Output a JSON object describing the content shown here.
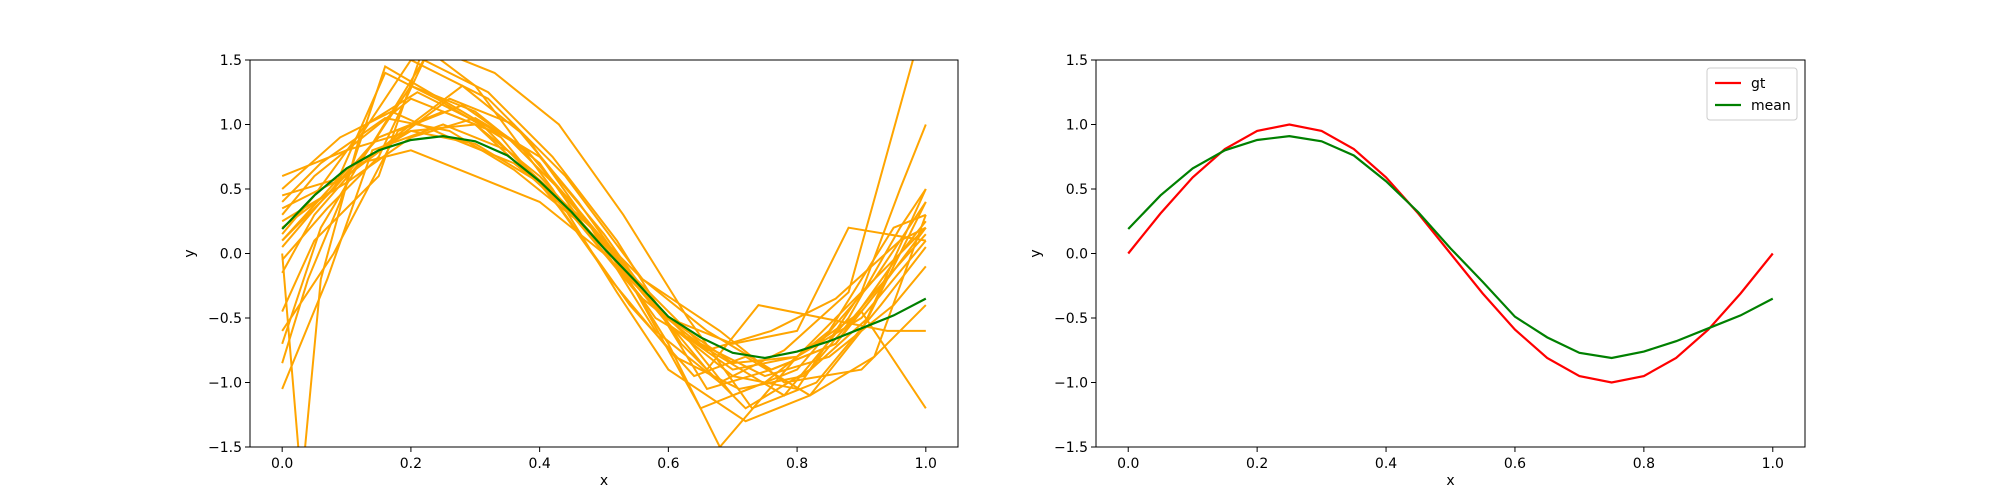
{
  "chart_data": [
    {
      "type": "line",
      "title": "",
      "xlabel": "x",
      "ylabel": "y",
      "xlim": [
        -0.05,
        1.05
      ],
      "ylim": [
        -1.5,
        1.5
      ],
      "xticks": [
        0.0,
        0.2,
        0.4,
        0.6,
        0.8,
        1.0
      ],
      "xtick_labels": [
        "0.0",
        "0.2",
        "0.4",
        "0.6",
        "0.8",
        "1.0"
      ],
      "yticks": [
        -1.5,
        -1.0,
        -0.5,
        0.0,
        0.5,
        1.0,
        1.5
      ],
      "ytick_labels": [
        "−1.5",
        "−1.0",
        "−0.5",
        "0.0",
        "0.5",
        "1.0",
        "1.5"
      ],
      "grid": false,
      "legend": null,
      "sample_color": "#ffa500",
      "mean_color": "#008000",
      "samples": [
        {
          "x": [
            0,
            0.05,
            0.1,
            0.2,
            0.3,
            0.4,
            0.5,
            0.6,
            0.7,
            0.8,
            0.9,
            1.0
          ],
          "y": [
            0.3,
            0.6,
            0.8,
            0.95,
            1.0,
            0.6,
            0.05,
            -0.5,
            -0.85,
            -0.8,
            -0.5,
            0.1
          ]
        },
        {
          "x": [
            0,
            0.08,
            0.15,
            0.25,
            0.35,
            0.45,
            0.55,
            0.65,
            0.75,
            0.85,
            0.95,
            1.0
          ],
          "y": [
            0.1,
            0.5,
            0.9,
            1.1,
            0.9,
            0.4,
            -0.2,
            -0.7,
            -0.95,
            -0.8,
            -0.4,
            -0.1
          ]
        },
        {
          "x": [
            0,
            0.1,
            0.2,
            0.3,
            0.45,
            0.55,
            0.65,
            0.75,
            0.85,
            0.95,
            1.0
          ],
          "y": [
            0.6,
            0.8,
            1.2,
            1.0,
            0.3,
            -0.3,
            -1.2,
            -1.0,
            -0.6,
            0.2,
            0.3
          ]
        },
        {
          "x": [
            0,
            0.06,
            0.12,
            0.2,
            0.3,
            0.4,
            0.5,
            0.62,
            0.7,
            0.8,
            0.92,
            1.0
          ],
          "y": [
            -0.7,
            0.2,
            0.7,
            1.3,
            1.1,
            0.7,
            0.0,
            -0.6,
            -1.1,
            -0.9,
            -0.2,
            0.4
          ]
        },
        {
          "x": [
            0,
            0.05,
            0.15,
            0.22,
            0.3,
            0.42,
            0.52,
            0.6,
            0.72,
            0.82,
            0.9,
            1.0
          ],
          "y": [
            -0.45,
            0.1,
            0.6,
            1.6,
            1.3,
            0.5,
            -0.3,
            -0.9,
            -1.3,
            -1.1,
            -0.6,
            0.5
          ]
        },
        {
          "x": [
            0,
            0.07,
            0.14,
            0.25,
            0.35,
            0.48,
            0.58,
            0.66,
            0.76,
            0.86,
            0.94,
            1.0
          ],
          "y": [
            -1.05,
            -0.2,
            0.8,
            1.0,
            0.8,
            0.2,
            -0.4,
            -1.05,
            -0.9,
            -0.7,
            -0.2,
            0.2
          ]
        },
        {
          "x": [
            0,
            0.04,
            0.09,
            0.16,
            0.28,
            0.38,
            0.5,
            0.6,
            0.68,
            0.8,
            0.9,
            1.0
          ],
          "y": [
            -0.85,
            -0.2,
            0.4,
            1.45,
            1.1,
            0.8,
            0.1,
            -0.7,
            -1.5,
            -0.8,
            -0.3,
            0.2
          ]
        },
        {
          "x": [
            0,
            0.03,
            0.06,
            0.12,
            0.2,
            0.32,
            0.44,
            0.56,
            0.68,
            0.78,
            0.9,
            1.0
          ],
          "y": [
            0.0,
            -1.8,
            -0.2,
            0.9,
            1.5,
            1.2,
            0.6,
            -0.2,
            -0.6,
            -1.0,
            -0.9,
            -0.4
          ]
        },
        {
          "x": [
            0,
            0.1,
            0.18,
            0.26,
            0.36,
            0.46,
            0.56,
            0.66,
            0.74,
            0.84,
            0.94,
            1.0
          ],
          "y": [
            0.45,
            0.6,
            0.9,
            1.2,
            1.0,
            0.4,
            -0.3,
            -0.9,
            -0.4,
            -0.5,
            -0.6,
            -0.6
          ]
        },
        {
          "x": [
            0,
            0.08,
            0.16,
            0.24,
            0.34,
            0.44,
            0.54,
            0.64,
            0.72,
            0.82,
            0.92,
            1.0
          ],
          "y": [
            0.2,
            0.5,
            1.4,
            1.2,
            0.9,
            0.3,
            -0.4,
            -0.95,
            -0.8,
            -1.1,
            -0.8,
            0.3
          ]
        },
        {
          "x": [
            0,
            0.05,
            0.12,
            0.2,
            0.3,
            0.4,
            0.5,
            0.6,
            0.7,
            0.8,
            0.88,
            1.0
          ],
          "y": [
            -0.15,
            0.3,
            0.7,
            0.8,
            0.6,
            0.4,
            0.0,
            -0.5,
            -0.7,
            -0.6,
            0.2,
            0.1
          ]
        },
        {
          "x": [
            0,
            0.1,
            0.2,
            0.28,
            0.38,
            0.48,
            0.58,
            0.68,
            0.78,
            0.88,
            0.96,
            1.0
          ],
          "y": [
            0.35,
            0.6,
            1.0,
            1.3,
            0.9,
            0.2,
            -0.5,
            -0.8,
            -1.1,
            -0.5,
            0.2,
            0.5
          ]
        },
        {
          "x": [
            0,
            0.06,
            0.14,
            0.22,
            0.32,
            0.42,
            0.52,
            0.62,
            0.72,
            0.82,
            0.92,
            1.0
          ],
          "y": [
            0.05,
            0.4,
            0.85,
            1.5,
            1.25,
            0.75,
            0.1,
            -0.7,
            -1.2,
            -0.9,
            -0.3,
            0.15
          ]
        },
        {
          "x": [
            0,
            0.09,
            0.17,
            0.26,
            0.36,
            0.46,
            0.56,
            0.66,
            0.76,
            0.86,
            0.96,
            1.0
          ],
          "y": [
            0.5,
            0.9,
            1.1,
            0.9,
            0.7,
            0.3,
            -0.2,
            -0.6,
            -0.9,
            -0.7,
            0.0,
            0.25
          ]
        },
        {
          "x": [
            0,
            0.07,
            0.15,
            0.23,
            0.33,
            0.43,
            0.53,
            0.63,
            0.73,
            0.83,
            0.93,
            1.0
          ],
          "y": [
            -0.05,
            0.35,
            0.75,
            1.6,
            1.4,
            1.0,
            0.3,
            -0.5,
            -1.2,
            -1.0,
            -0.4,
            0.05
          ]
        },
        {
          "x": [
            0,
            0.1,
            0.2,
            0.3,
            0.4,
            0.5,
            0.6,
            0.7,
            0.8,
            0.9,
            1.0
          ],
          "y": [
            0.25,
            0.55,
            0.9,
            1.05,
            0.75,
            0.15,
            -0.55,
            -0.9,
            -0.8,
            -0.45,
            -1.2
          ]
        },
        {
          "x": [
            0,
            0.05,
            0.13,
            0.21,
            0.31,
            0.41,
            0.51,
            0.61,
            0.71,
            0.81,
            0.91,
            1.0
          ],
          "y": [
            0.15,
            0.45,
            1.0,
            1.25,
            1.0,
            0.5,
            -0.2,
            -0.8,
            -1.05,
            -0.95,
            -0.5,
            0.4
          ]
        },
        {
          "x": [
            0,
            0.08,
            0.18,
            0.28,
            0.38,
            0.48,
            0.58,
            0.68,
            0.78,
            0.88,
            0.98,
            1.0
          ],
          "y": [
            -0.6,
            0.0,
            0.95,
            1.15,
            0.8,
            0.2,
            -0.6,
            -1.0,
            -0.75,
            -0.3,
            1.5,
            2.0
          ]
        },
        {
          "x": [
            0,
            0.06,
            0.16,
            0.26,
            0.36,
            0.46,
            0.56,
            0.66,
            0.76,
            0.86,
            0.96,
            1.0
          ],
          "y": [
            0.4,
            0.7,
            1.05,
            0.95,
            0.65,
            0.25,
            -0.35,
            -0.75,
            -0.6,
            -0.35,
            0.1,
            0.2
          ]
        },
        {
          "x": [
            0,
            0.1,
            0.2,
            0.3,
            0.4,
            0.5,
            0.6,
            0.7,
            0.8,
            0.9,
            0.96,
            1.0
          ],
          "y": [
            0.1,
            0.65,
            0.95,
            0.85,
            0.55,
            0.05,
            -0.55,
            -0.95,
            -1.05,
            -0.3,
            0.5,
            1.0
          ]
        }
      ],
      "series": [
        {
          "name": "mean",
          "x": [
            0.0,
            0.05,
            0.1,
            0.15,
            0.2,
            0.25,
            0.3,
            0.35,
            0.4,
            0.45,
            0.5,
            0.55,
            0.6,
            0.65,
            0.7,
            0.75,
            0.8,
            0.85,
            0.9,
            0.95,
            1.0
          ],
          "y": [
            0.19,
            0.45,
            0.66,
            0.8,
            0.88,
            0.91,
            0.87,
            0.76,
            0.56,
            0.32,
            0.04,
            -0.22,
            -0.49,
            -0.65,
            -0.77,
            -0.81,
            -0.76,
            -0.68,
            -0.58,
            -0.48,
            -0.35
          ]
        }
      ]
    },
    {
      "type": "line",
      "title": "",
      "xlabel": "x",
      "ylabel": "y",
      "xlim": [
        -0.05,
        1.05
      ],
      "ylim": [
        -1.5,
        1.5
      ],
      "xticks": [
        0.0,
        0.2,
        0.4,
        0.6,
        0.8,
        1.0
      ],
      "xtick_labels": [
        "0.0",
        "0.2",
        "0.4",
        "0.6",
        "0.8",
        "1.0"
      ],
      "yticks": [
        -1.5,
        -1.0,
        -0.5,
        0.0,
        0.5,
        1.0,
        1.5
      ],
      "ytick_labels": [
        "−1.5",
        "−1.0",
        "−0.5",
        "0.0",
        "0.5",
        "1.0",
        "1.5"
      ],
      "grid": false,
      "legend": "top-right",
      "series": [
        {
          "name": "gt",
          "color": "#ff0000",
          "x": [
            0.0,
            0.05,
            0.1,
            0.15,
            0.2,
            0.25,
            0.3,
            0.35,
            0.4,
            0.45,
            0.5,
            0.55,
            0.6,
            0.65,
            0.7,
            0.75,
            0.8,
            0.85,
            0.9,
            0.95,
            1.0
          ],
          "y": [
            0.0,
            0.31,
            0.59,
            0.81,
            0.95,
            1.0,
            0.95,
            0.81,
            0.59,
            0.31,
            0.0,
            -0.31,
            -0.59,
            -0.81,
            -0.95,
            -1.0,
            -0.95,
            -0.81,
            -0.59,
            -0.31,
            0.0
          ]
        },
        {
          "name": "mean",
          "color": "#008000",
          "x": [
            0.0,
            0.05,
            0.1,
            0.15,
            0.2,
            0.25,
            0.3,
            0.35,
            0.4,
            0.45,
            0.5,
            0.55,
            0.6,
            0.65,
            0.7,
            0.75,
            0.8,
            0.85,
            0.9,
            0.95,
            1.0
          ],
          "y": [
            0.19,
            0.45,
            0.66,
            0.8,
            0.88,
            0.91,
            0.87,
            0.76,
            0.56,
            0.32,
            0.04,
            -0.22,
            -0.49,
            -0.65,
            -0.77,
            -0.81,
            -0.76,
            -0.68,
            -0.58,
            -0.48,
            -0.35
          ]
        }
      ]
    }
  ]
}
